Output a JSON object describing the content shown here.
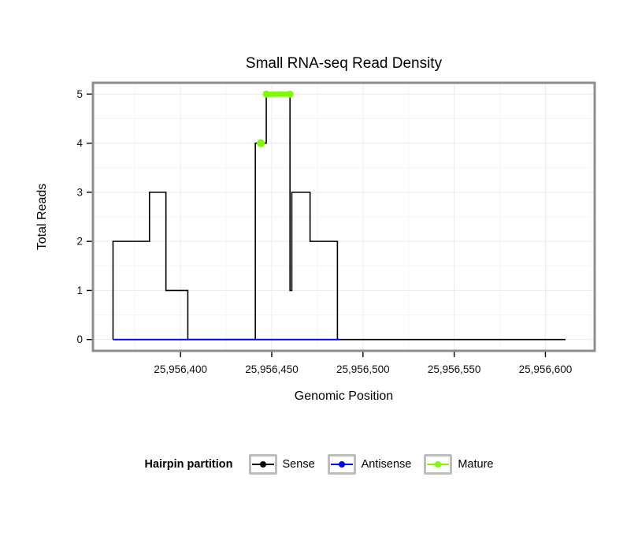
{
  "chart_data": {
    "type": "line",
    "title": "Small RNA-seq Read Density",
    "xlabel": "Genomic Position",
    "ylabel": "Total Reads",
    "xlim": [
      25956352,
      25956627
    ],
    "ylim": [
      0,
      5
    ],
    "y_pad": 0.23,
    "xticks": [
      25956400,
      25956450,
      25956500,
      25956550,
      25956600
    ],
    "xtick_labels": [
      "25,956,400",
      "25,956,450",
      "25,956,500",
      "25,956,550",
      "25,956,600"
    ],
    "yticks": [
      0,
      1,
      2,
      3,
      4,
      5
    ],
    "ytick_labels": [
      "0",
      "1",
      "2",
      "3",
      "4",
      "5"
    ],
    "grid": true,
    "grid_major_color": "#ececec",
    "grid_minor_color": "#f6f6f6",
    "panel_border_color": "#8e8e8e",
    "tick_color": "#000000",
    "legend": {
      "title": "Hairpin partition",
      "position": "bottom"
    },
    "series": [
      {
        "name": "Sense",
        "color": "#000000",
        "style": "step",
        "points": [
          [
            25956363,
            0
          ],
          [
            25956363,
            2
          ],
          [
            25956383,
            2
          ],
          [
            25956383,
            3
          ],
          [
            25956392,
            3
          ],
          [
            25956392,
            1
          ],
          [
            25956404,
            1
          ],
          [
            25956404,
            0
          ],
          [
            25956441,
            0
          ],
          [
            25956441,
            4
          ],
          [
            25956447,
            4
          ],
          [
            25956447,
            5
          ],
          [
            25956460,
            5
          ],
          [
            25956460,
            1
          ],
          [
            25956461,
            1
          ],
          [
            25956461,
            3
          ],
          [
            25956471,
            3
          ],
          [
            25956471,
            2
          ],
          [
            25956486,
            2
          ],
          [
            25956486,
            0
          ],
          [
            25956611,
            0
          ]
        ]
      },
      {
        "name": "Antisense",
        "color": "#0000ff",
        "style": "line",
        "points": [
          [
            25956363,
            0
          ],
          [
            25956487,
            0
          ]
        ]
      },
      {
        "name": "Mature",
        "color": "#7CFC00",
        "style": "marker",
        "dots": [
          [
            25956444,
            4
          ]
        ],
        "segments": [
          [
            25956447,
            25956460,
            5
          ]
        ]
      }
    ]
  }
}
